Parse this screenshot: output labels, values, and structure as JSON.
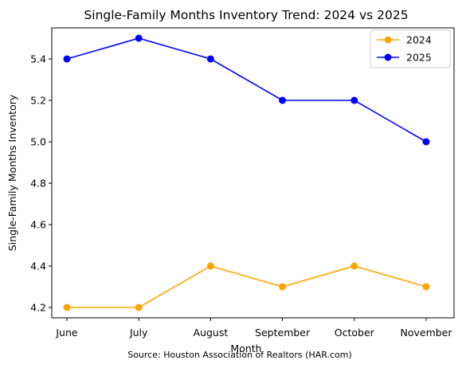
{
  "chart_data": {
    "type": "line",
    "title": "Single-Family Months Inventory Trend: 2024 vs 2025",
    "xlabel": "Month",
    "ylabel": "Single-Family Months Inventory",
    "categories": [
      "June",
      "July",
      "August",
      "September",
      "October",
      "November"
    ],
    "ylim": [
      4.15,
      5.55
    ],
    "yticks": [
      "4.2",
      "4.4",
      "4.6",
      "4.8",
      "5.0",
      "5.2",
      "5.4"
    ],
    "grid": false,
    "legend_position": "top-right",
    "series": [
      {
        "name": "2024",
        "color": "#ffa500",
        "marker": "circle",
        "values": [
          4.2,
          4.2,
          4.4,
          4.3,
          4.4,
          4.3
        ]
      },
      {
        "name": "2025",
        "color": "#0000ff",
        "marker": "circle",
        "values": [
          5.4,
          5.5,
          5.4,
          5.2,
          5.2,
          5.0
        ]
      }
    ],
    "source": "Source: Houston Association of Realtors (HAR.com)"
  }
}
